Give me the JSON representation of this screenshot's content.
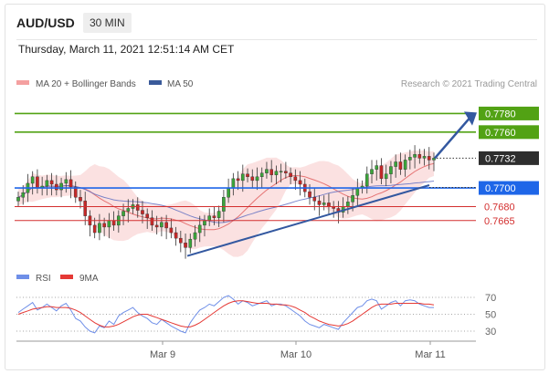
{
  "header": {
    "symbol": "AUD/USD",
    "timeframe": "30 MIN",
    "datetime": "Thursday, March 11, 2021 12:51:14 AM CET"
  },
  "legend": {
    "ma20": "MA 20 + Bollinger Bands",
    "ma50": "MA 50",
    "credit": "Research © 2021 Trading Central"
  },
  "rsi_legend": {
    "rsi": "RSI",
    "ma9": "9MA"
  },
  "colors": {
    "bull": "#3aa53a",
    "bear": "#c62828",
    "bollinger": "#f8c8c8",
    "ma20": "#e57373",
    "ma50": "#5c6bc0",
    "trend": "#3358a0",
    "resistance": "#52a214",
    "price_tag": "#2e2e2e",
    "pivot": "#1e66e8",
    "support": "#d32f2f",
    "rsi": "#6f8fe8",
    "rsi_ma": "#e53935"
  },
  "chart_data": {
    "type": "candlestick",
    "x_labels": [
      "Mar 9",
      "Mar 10",
      "Mar 11"
    ],
    "ylim": [
      0.7605,
      0.78
    ],
    "levels": [
      {
        "label": "0.7780",
        "value": 0.778,
        "kind": "resistance"
      },
      {
        "label": "0.7760",
        "value": 0.776,
        "kind": "resistance"
      },
      {
        "label": "0.7732",
        "value": 0.7732,
        "kind": "price"
      },
      {
        "label": "0.7700",
        "value": 0.77,
        "kind": "pivot"
      },
      {
        "label": "0.7680",
        "value": 0.768,
        "kind": "support"
      },
      {
        "label": "0.7665",
        "value": 0.7665,
        "kind": "support"
      }
    ],
    "closes": [
      0.769,
      0.7695,
      0.7705,
      0.7712,
      0.77,
      0.7702,
      0.7708,
      0.7704,
      0.7698,
      0.7705,
      0.7709,
      0.7701,
      0.769,
      0.7686,
      0.767,
      0.766,
      0.7652,
      0.7662,
      0.7658,
      0.7665,
      0.766,
      0.767,
      0.7675,
      0.7678,
      0.7682,
      0.7676,
      0.7672,
      0.7668,
      0.766,
      0.7658,
      0.7663,
      0.7657,
      0.7652,
      0.7646,
      0.7641,
      0.7636,
      0.7645,
      0.7652,
      0.766,
      0.7665,
      0.767,
      0.7668,
      0.7675,
      0.769,
      0.77,
      0.771,
      0.7708,
      0.7715,
      0.7712,
      0.7708,
      0.7712,
      0.7716,
      0.772,
      0.7714,
      0.7718,
      0.7718,
      0.7716,
      0.7712,
      0.7708,
      0.7704,
      0.7696,
      0.769,
      0.7686,
      0.7682,
      0.7684,
      0.768,
      0.7678,
      0.7674,
      0.768,
      0.7685,
      0.7692,
      0.77,
      0.7702,
      0.7715,
      0.772,
      0.7724,
      0.771,
      0.7715,
      0.7723,
      0.7728,
      0.772,
      0.773,
      0.7733,
      0.7736,
      0.7732,
      0.7734,
      0.773,
      0.7732
    ],
    "rsi": {
      "ticks": [
        "70",
        "50",
        "30"
      ],
      "ylim": [
        20,
        80
      ],
      "values": [
        52,
        56,
        60,
        64,
        55,
        58,
        62,
        58,
        54,
        60,
        63,
        55,
        45,
        42,
        35,
        30,
        28,
        36,
        34,
        42,
        38,
        48,
        52,
        55,
        58,
        52,
        48,
        45,
        40,
        38,
        44,
        40,
        36,
        33,
        30,
        28,
        40,
        48,
        55,
        58,
        62,
        60,
        65,
        70,
        72,
        68,
        62,
        66,
        64,
        60,
        62,
        64,
        66,
        60,
        62,
        62,
        60,
        56,
        52,
        48,
        42,
        38,
        36,
        34,
        38,
        36,
        34,
        32,
        40,
        46,
        52,
        58,
        60,
        66,
        68,
        66,
        56,
        60,
        64,
        66,
        60,
        66,
        67,
        66,
        62,
        60,
        58,
        58
      ],
      "ma9": [
        50,
        52,
        54,
        56,
        57,
        58,
        59,
        59,
        58,
        58,
        58,
        57,
        55,
        52,
        48,
        44,
        40,
        37,
        35,
        35,
        36,
        38,
        41,
        44,
        47,
        49,
        50,
        50,
        48,
        46,
        44,
        42,
        40,
        38,
        36,
        35,
        35,
        37,
        40,
        44,
        48,
        52,
        56,
        60,
        63,
        65,
        66,
        66,
        65,
        64,
        63,
        63,
        63,
        62,
        62,
        61,
        61,
        60,
        58,
        55,
        52,
        48,
        45,
        42,
        40,
        38,
        37,
        36,
        37,
        39,
        42,
        46,
        50,
        54,
        58,
        61,
        62,
        62,
        62,
        63,
        63,
        63,
        63,
        63,
        63,
        62,
        62,
        61
      ]
    }
  }
}
